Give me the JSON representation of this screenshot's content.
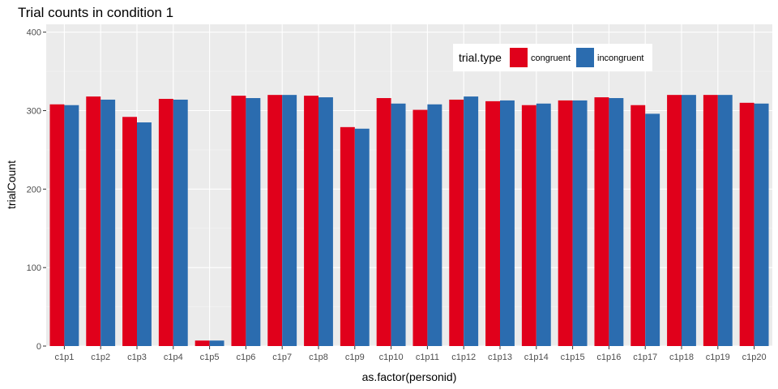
{
  "chart_data": {
    "type": "bar",
    "title": "Trial counts in condition 1",
    "xlabel": "as.factor(personid)",
    "ylabel": "trialCount",
    "ylim": [
      0,
      410
    ],
    "yticks": [
      0,
      100,
      200,
      300,
      400
    ],
    "grid": true,
    "legend": {
      "title": "trial.type",
      "placement": "top-right"
    },
    "categories": [
      "c1p1",
      "c1p2",
      "c1p3",
      "c1p4",
      "c1p5",
      "c1p6",
      "c1p7",
      "c1p8",
      "c1p9",
      "c1p10",
      "c1p11",
      "c1p12",
      "c1p13",
      "c1p14",
      "c1p15",
      "c1p16",
      "c1p17",
      "c1p18",
      "c1p19",
      "c1p20"
    ],
    "series": [
      {
        "name": "congruent",
        "color": "#E0001B",
        "values": [
          308,
          318,
          292,
          315,
          7,
          319,
          320,
          319,
          279,
          316,
          301,
          314,
          312,
          307,
          313,
          317,
          307,
          320,
          320,
          310
        ]
      },
      {
        "name": "incongruent",
        "color": "#2B6CAF",
        "values": [
          307,
          314,
          285,
          314,
          7,
          316,
          320,
          317,
          277,
          309,
          308,
          318,
          313,
          309,
          313,
          316,
          296,
          320,
          320,
          309
        ]
      }
    ]
  }
}
